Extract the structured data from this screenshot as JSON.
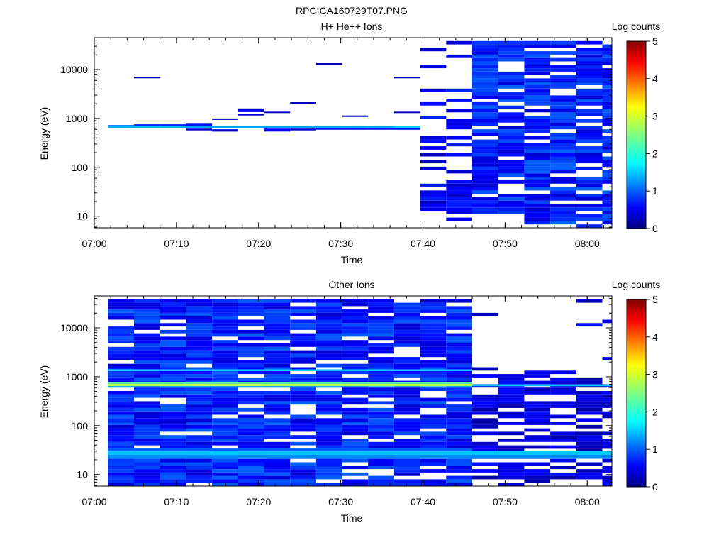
{
  "figure_title": "RPCICA160729T07.PNG",
  "chart_data": [
    {
      "type": "heatmap",
      "title": "H+ He++ Ions",
      "xlabel": "Time",
      "ylabel": "Energy (eV)",
      "yscale": "log",
      "xlim": [
        "07:00",
        "08:03"
      ],
      "ylim": [
        5.8,
        45000
      ],
      "x_ticks": [
        "07:00",
        "07:10",
        "07:20",
        "07:30",
        "07:40",
        "07:50",
        "08:00"
      ],
      "y_ticks": [
        "10",
        "100",
        "1000",
        "10000"
      ],
      "colorbar": {
        "label": "Log counts",
        "min": 0,
        "max": 5,
        "ticks": [
          "0",
          "1",
          "2",
          "3",
          "4",
          "5"
        ],
        "colormap": "jet"
      },
      "time_bins": [
        "07:01:40",
        "07:04:50",
        "07:08:00",
        "07:11:10",
        "07:14:20",
        "07:17:30",
        "07:20:40",
        "07:23:50",
        "07:27:00",
        "07:30:10",
        "07:33:20",
        "07:36:30",
        "07:39:40",
        "07:42:50",
        "07:46:00",
        "07:49:10",
        "07:52:20",
        "07:55:30",
        "07:58:40",
        "08:01:50"
      ],
      "cells": [
        {
          "t0": "07:01:40",
          "t1": "07:04:50",
          "e0": 640,
          "e1": 700,
          "value": 1.5
        },
        {
          "t0": "07:01:40",
          "t1": "07:04:50",
          "e0": 700,
          "e1": 735,
          "value": 1.2
        },
        {
          "t0": "07:04:50",
          "t1": "07:08:00",
          "e0": 640,
          "e1": 700,
          "value": 1.5
        },
        {
          "t0": "07:04:50",
          "t1": "07:08:00",
          "e0": 700,
          "e1": 760,
          "value": 0.8
        },
        {
          "t0": "07:04:50",
          "t1": "07:08:00",
          "e0": 6700,
          "e1": 7100,
          "value": 0.3
        },
        {
          "t0": "07:08:00",
          "t1": "07:11:10",
          "e0": 640,
          "e1": 700,
          "value": 1.5
        },
        {
          "t0": "07:08:00",
          "t1": "07:11:10",
          "e0": 700,
          "e1": 760,
          "value": 0.8
        },
        {
          "t0": "07:11:10",
          "t1": "07:14:20",
          "e0": 640,
          "e1": 700,
          "value": 1.4
        },
        {
          "t0": "07:11:10",
          "t1": "07:14:20",
          "e0": 570,
          "e1": 620,
          "value": 0.4
        },
        {
          "t0": "07:11:10",
          "t1": "07:14:20",
          "e0": 700,
          "e1": 780,
          "value": 0.7
        },
        {
          "t0": "07:14:20",
          "t1": "07:17:30",
          "e0": 640,
          "e1": 700,
          "value": 1.4
        },
        {
          "t0": "07:14:20",
          "t1": "07:17:30",
          "e0": 540,
          "e1": 600,
          "value": 0.4
        },
        {
          "t0": "07:14:20",
          "t1": "07:17:30",
          "e0": 940,
          "e1": 1000,
          "value": 0.3
        },
        {
          "t0": "07:17:30",
          "t1": "07:20:40",
          "e0": 640,
          "e1": 700,
          "value": 1.4
        },
        {
          "t0": "07:17:30",
          "t1": "07:20:40",
          "e0": 1350,
          "e1": 1600,
          "value": 0.5
        },
        {
          "t0": "07:17:30",
          "t1": "07:20:40",
          "e0": 1150,
          "e1": 1250,
          "value": 0.3
        },
        {
          "t0": "07:20:40",
          "t1": "07:23:50",
          "e0": 640,
          "e1": 700,
          "value": 1.4
        },
        {
          "t0": "07:20:40",
          "t1": "07:23:50",
          "e0": 540,
          "e1": 620,
          "value": 0.6
        },
        {
          "t0": "07:20:40",
          "t1": "07:23:50",
          "e0": 1300,
          "e1": 1380,
          "value": 0.3
        },
        {
          "t0": "07:23:50",
          "t1": "07:27:00",
          "e0": 640,
          "e1": 700,
          "value": 1.4
        },
        {
          "t0": "07:23:50",
          "t1": "07:27:00",
          "e0": 570,
          "e1": 620,
          "value": 0.4
        },
        {
          "t0": "07:23:50",
          "t1": "07:27:00",
          "e0": 2000,
          "e1": 2150,
          "value": 0.3
        },
        {
          "t0": "07:27:00",
          "t1": "07:30:10",
          "e0": 640,
          "e1": 700,
          "value": 1.4
        },
        {
          "t0": "07:27:00",
          "t1": "07:30:10",
          "e0": 590,
          "e1": 640,
          "value": 0.6
        },
        {
          "t0": "07:27:00",
          "t1": "07:30:10",
          "e0": 12500,
          "e1": 13500,
          "value": 0.3
        },
        {
          "t0": "07:30:10",
          "t1": "07:33:20",
          "e0": 640,
          "e1": 700,
          "value": 1.4
        },
        {
          "t0": "07:30:10",
          "t1": "07:33:20",
          "e0": 590,
          "e1": 640,
          "value": 0.6
        },
        {
          "t0": "07:30:10",
          "t1": "07:33:20",
          "e0": 1080,
          "e1": 1150,
          "value": 0.3
        },
        {
          "t0": "07:33:20",
          "t1": "07:36:30",
          "e0": 640,
          "e1": 700,
          "value": 1.4
        },
        {
          "t0": "07:33:20",
          "t1": "07:36:30",
          "e0": 590,
          "e1": 640,
          "value": 0.6
        },
        {
          "t0": "07:36:30",
          "t1": "07:39:40",
          "e0": 640,
          "e1": 700,
          "value": 1.6
        },
        {
          "t0": "07:36:30",
          "t1": "07:39:40",
          "e0": 590,
          "e1": 640,
          "value": 0.6
        },
        {
          "t0": "07:36:30",
          "t1": "07:39:40",
          "e0": 1300,
          "e1": 1380,
          "value": 0.3
        },
        {
          "t0": "07:36:30",
          "t1": "07:39:40",
          "e0": 6700,
          "e1": 7100,
          "value": 0.3
        }
      ]
    },
    {
      "type": "heatmap",
      "title": "Other Ions",
      "xlabel": "Time",
      "ylabel": "Energy (eV)",
      "yscale": "log",
      "xlim": [
        "07:00",
        "08:03"
      ],
      "ylim": [
        5.8,
        45000
      ],
      "x_ticks": [
        "07:00",
        "07:10",
        "07:20",
        "07:30",
        "07:40",
        "07:50",
        "08:00"
      ],
      "y_ticks": [
        "10",
        "100",
        "1000",
        "10000"
      ],
      "colorbar": {
        "label": "Log counts",
        "min": 0,
        "max": 5,
        "ticks": [
          "0",
          "1",
          "2",
          "3",
          "4",
          "5"
        ],
        "colormap": "jet"
      },
      "time_bins": [
        "07:01:40",
        "07:04:50",
        "07:08:00",
        "07:11:10",
        "07:14:20",
        "07:17:30",
        "07:20:40",
        "07:23:50",
        "07:27:00",
        "07:30:10",
        "07:33:20",
        "07:36:30",
        "07:39:40",
        "07:42:50",
        "07:46:00",
        "07:49:10",
        "07:52:20",
        "07:55:30",
        "07:58:40",
        "08:01:50"
      ],
      "bands": [
        {
          "e0": 640,
          "e1": 720,
          "value": 2.8,
          "t0": "07:01:40",
          "t1": "07:46:00"
        },
        {
          "e0": 720,
          "e1": 770,
          "value": 2.3,
          "t0": "07:01:40",
          "t1": "07:46:00"
        },
        {
          "e0": 600,
          "e1": 640,
          "value": 1.5,
          "t0": "07:01:40",
          "t1": "07:46:00"
        },
        {
          "e0": 640,
          "e1": 700,
          "value": 1.6,
          "t0": "07:46:00",
          "t1": "08:03:00"
        },
        {
          "e0": 1300,
          "e1": 1420,
          "value": 1.6,
          "t0": "07:01:40",
          "t1": "07:46:00"
        },
        {
          "e0": 25,
          "e1": 30,
          "value": 1.6,
          "t0": "07:01:40",
          "t1": "08:03:00"
        },
        {
          "e0": 21,
          "e1": 25,
          "value": 1.3,
          "t0": "07:01:40",
          "t1": "08:03:00"
        },
        {
          "e0": 30,
          "e1": 34,
          "value": 1.1,
          "t0": "07:01:40",
          "t1": "07:46:00"
        }
      ]
    }
  ]
}
